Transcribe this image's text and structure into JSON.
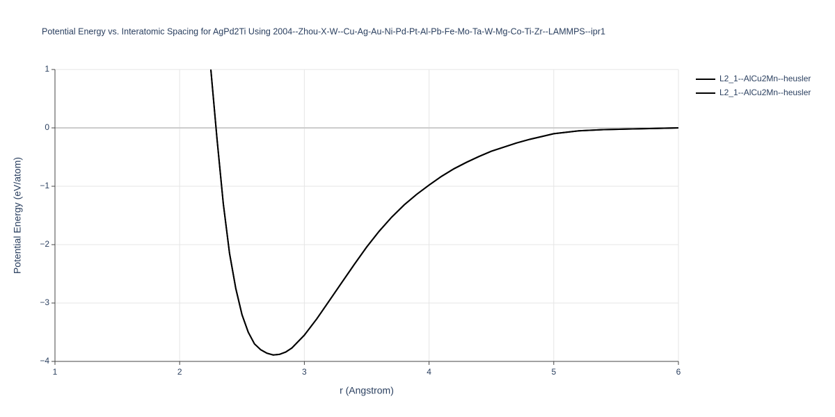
{
  "chart_data": {
    "type": "line",
    "title": "Potential Energy vs. Interatomic Spacing for AgPd2Ti Using 2004--Zhou-X-W--Cu-Ag-Au-Ni-Pd-Pt-Al-Pb-Fe-Mo-Ta-W-Mg-Co-Ti-Zr--LAMMPS--ipr1",
    "x_label": "r (Angstrom)",
    "y_label": "Potential Energy (eV/atom)",
    "xlim": [
      1,
      6
    ],
    "xticks": [
      1,
      2,
      3,
      4,
      5,
      6
    ],
    "ylim": [
      -4,
      1
    ],
    "yticks": [
      {
        "value": -4,
        "label": "−4"
      },
      {
        "value": -3,
        "label": "−3"
      },
      {
        "value": -2,
        "label": "−2"
      },
      {
        "value": -1,
        "label": "−1"
      },
      0,
      1
    ],
    "grid": true,
    "legend": "right",
    "x": [
      2.25,
      2.3,
      2.35,
      2.4,
      2.45,
      2.5,
      2.55,
      2.6,
      2.65,
      2.7,
      2.75,
      2.8,
      2.85,
      2.9,
      3.0,
      3.1,
      3.2,
      3.3,
      3.4,
      3.5,
      3.6,
      3.7,
      3.8,
      3.9,
      4.0,
      4.1,
      4.2,
      4.3,
      4.4,
      4.5,
      4.6,
      4.7,
      4.8,
      4.9,
      5.0,
      5.2,
      5.4,
      5.6,
      5.8,
      6.0
    ],
    "series": [
      {
        "name": "L2_1--AlCu2Mn--heusler",
        "color": "#000000",
        "values": [
          1.0,
          -0.2,
          -1.3,
          -2.15,
          -2.75,
          -3.2,
          -3.5,
          -3.7,
          -3.8,
          -3.86,
          -3.89,
          -3.88,
          -3.84,
          -3.77,
          -3.55,
          -3.27,
          -2.96,
          -2.65,
          -2.34,
          -2.04,
          -1.77,
          -1.53,
          -1.32,
          -1.14,
          -0.98,
          -0.83,
          -0.7,
          -0.59,
          -0.49,
          -0.4,
          -0.33,
          -0.26,
          -0.2,
          -0.15,
          -0.1,
          -0.05,
          -0.03,
          -0.02,
          -0.01,
          0
        ]
      },
      {
        "name": "L2_1--AlCu2Mn--heusler",
        "color": "#000000",
        "values": [
          1.0,
          -0.2,
          -1.3,
          -2.15,
          -2.75,
          -3.2,
          -3.5,
          -3.7,
          -3.8,
          -3.86,
          -3.89,
          -3.88,
          -3.84,
          -3.77,
          -3.55,
          -3.27,
          -2.96,
          -2.65,
          -2.34,
          -2.04,
          -1.77,
          -1.53,
          -1.32,
          -1.14,
          -0.98,
          -0.83,
          -0.7,
          -0.59,
          -0.49,
          -0.4,
          -0.33,
          -0.26,
          -0.2,
          -0.15,
          -0.1,
          -0.05,
          -0.03,
          -0.02,
          -0.01,
          0
        ]
      }
    ]
  }
}
